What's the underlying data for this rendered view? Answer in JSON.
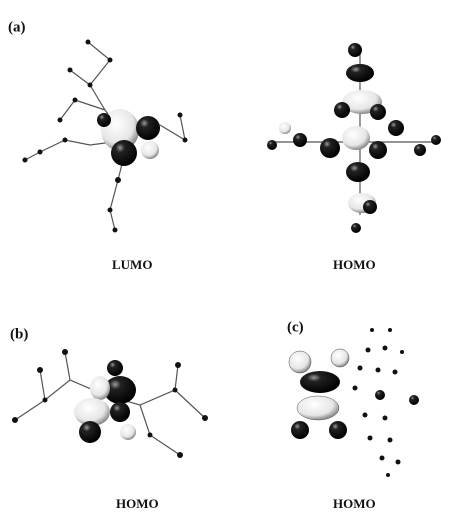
{
  "panels": [
    {
      "label": "(a)",
      "captions": [
        "LUMO",
        "HOMO"
      ]
    },
    {
      "label": "(b)",
      "captions": [
        "HOMO"
      ]
    },
    {
      "label": "(c)",
      "captions": [
        "HOMO"
      ]
    }
  ]
}
